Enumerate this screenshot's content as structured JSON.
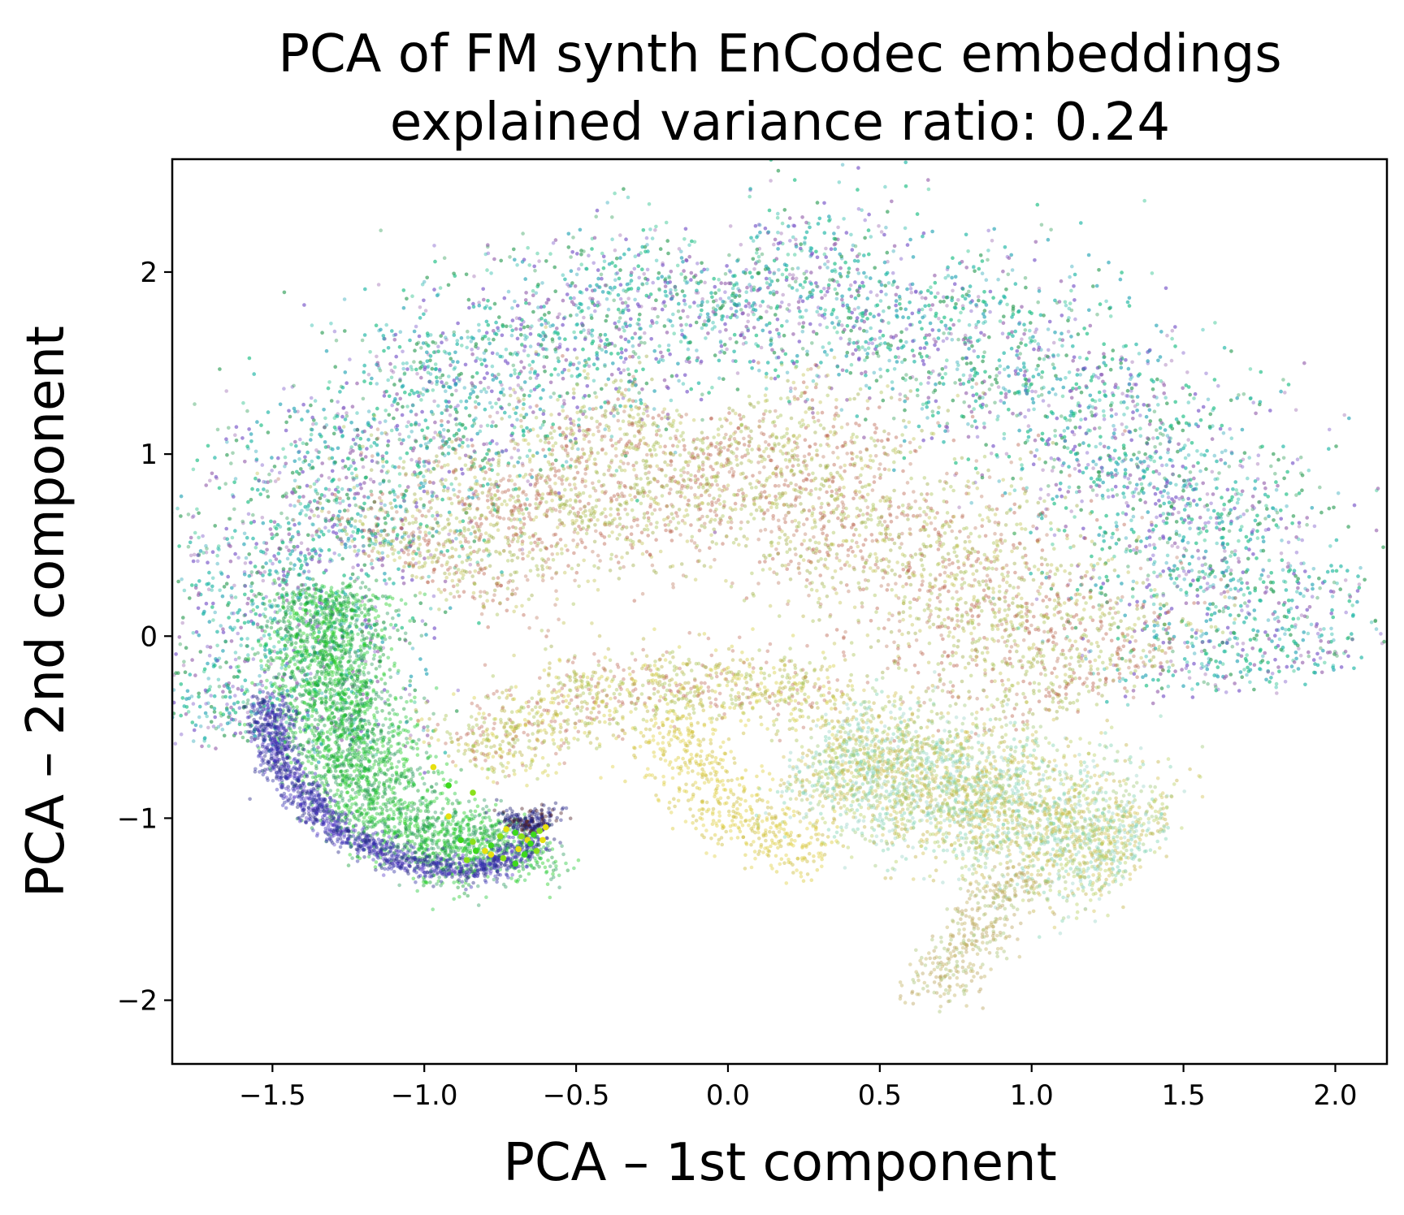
{
  "chart_data": {
    "type": "scatter",
    "title": [
      "PCA of FM synth EnCodec embeddings",
      "explained variance ratio: 0.24"
    ],
    "xlabel": "PCA – 1st component",
    "ylabel": "PCA – 2nd component",
    "xlim": [
      -1.83,
      2.17
    ],
    "ylim": [
      -2.35,
      2.62
    ],
    "xticks": [
      -1.5,
      -1.0,
      -0.5,
      0.0,
      0.5,
      1.0,
      1.5,
      2.0
    ],
    "xtick_labels": [
      "−1.5",
      "−1.0",
      "−0.5",
      "0.0",
      "0.5",
      "1.0",
      "1.5",
      "2.0"
    ],
    "yticks": [
      -2,
      -1,
      0,
      1,
      2
    ],
    "ytick_labels": [
      "−2",
      "−1",
      "0",
      "1",
      "2"
    ],
    "grid": false,
    "legend": "none",
    "regions": [
      {
        "name": "outer-arc",
        "colors": [
          "#1fbf86",
          "#22b8a8",
          "#35a05a",
          "#7a55c8",
          "#2aa6b8",
          "#9a6ab0"
        ],
        "path": [
          [
            -1.55,
            -0.6
          ],
          [
            -1.5,
            0.0
          ],
          [
            -1.38,
            0.65
          ],
          [
            -1.05,
            1.2
          ],
          [
            -0.55,
            1.65
          ],
          [
            0.0,
            1.95
          ],
          [
            0.55,
            1.85
          ],
          [
            1.05,
            1.45
          ],
          [
            1.4,
            0.95
          ],
          [
            1.62,
            0.4
          ],
          [
            1.75,
            -0.25
          ]
        ],
        "width": 0.55,
        "count": 9000
      },
      {
        "name": "left-green-band",
        "colors": [
          "#1ecc1e",
          "#22c83a",
          "#2a9c60",
          "#0f9a30"
        ],
        "path": [
          [
            -1.32,
            0.25
          ],
          [
            -1.3,
            -0.4
          ],
          [
            -1.2,
            -0.85
          ],
          [
            -1.0,
            -1.15
          ],
          [
            -0.8,
            -1.2
          ],
          [
            -0.65,
            -1.1
          ]
        ],
        "width": 0.24,
        "count": 3000
      },
      {
        "name": "left-blue-edge",
        "colors": [
          "#2a2aa0",
          "#3a2fb8",
          "#5a3cc8",
          "#1e1e80"
        ],
        "path": [
          [
            -1.52,
            -0.35
          ],
          [
            -1.48,
            -0.7
          ],
          [
            -1.3,
            -1.05
          ],
          [
            -1.05,
            -1.25
          ],
          [
            -0.82,
            -1.3
          ],
          [
            -0.65,
            -1.15
          ]
        ],
        "width": 0.08,
        "count": 1400
      },
      {
        "name": "center-fill",
        "colors": [
          "#b85a44",
          "#9aaa40",
          "#c0c050",
          "#a8c050",
          "#c0806a"
        ],
        "path": [
          [
            -1.05,
            0.35
          ],
          [
            -0.6,
            0.85
          ],
          [
            -0.1,
            1.05
          ],
          [
            0.45,
            0.7
          ],
          [
            0.85,
            0.2
          ],
          [
            1.25,
            -0.3
          ]
        ],
        "width": 0.55,
        "count": 3800
      },
      {
        "name": "lower-center",
        "colors": [
          "#b8b040",
          "#a8c050",
          "#c07060",
          "#d4cc40"
        ],
        "path": [
          [
            -0.85,
            -0.7
          ],
          [
            -0.55,
            -0.35
          ],
          [
            -0.15,
            -0.25
          ],
          [
            0.35,
            -0.35
          ]
        ],
        "width": 0.25,
        "count": 1100
      },
      {
        "name": "right-lobe",
        "colors": [
          "#7ad2b0",
          "#b8d060",
          "#a0c878",
          "#d2c050",
          "#9ad4c8",
          "#c0b040"
        ],
        "path": [
          [
            0.3,
            -0.6
          ],
          [
            0.7,
            -0.8
          ],
          [
            1.05,
            -1.05
          ],
          [
            1.35,
            -1.2
          ]
        ],
        "width": 0.42,
        "count": 3200
      },
      {
        "name": "yellow-drip",
        "colors": [
          "#e0d040",
          "#d8c830",
          "#c8b830"
        ],
        "path": [
          [
            -0.18,
            -0.45
          ],
          [
            -0.1,
            -0.8
          ],
          [
            0.1,
            -1.1
          ],
          [
            0.3,
            -1.2
          ]
        ],
        "width": 0.2,
        "count": 500
      },
      {
        "name": "right-bottom-tail",
        "colors": [
          "#c0b060",
          "#b8a058",
          "#a8c070"
        ],
        "path": [
          [
            0.95,
            -1.3
          ],
          [
            0.85,
            -1.55
          ],
          [
            0.75,
            -1.8
          ],
          [
            0.7,
            -2.0
          ]
        ],
        "width": 0.14,
        "count": 380
      },
      {
        "name": "cusp-dark",
        "colors": [
          "#1a1a70",
          "#22228a",
          "#4a1a20"
        ],
        "path": [
          [
            -0.72,
            -1.0
          ],
          [
            -0.65,
            -1.05
          ],
          [
            -0.6,
            -0.98
          ]
        ],
        "width": 0.06,
        "count": 220
      }
    ],
    "highlight_points": {
      "colors": [
        "#e6e010",
        "#3cd81e",
        "#8ae01a"
      ],
      "x": [
        -0.97,
        -0.92,
        -0.84,
        -0.92,
        -0.88,
        -0.84,
        -0.8,
        -0.78,
        -0.75,
        -0.73,
        -0.7,
        -0.68,
        -0.66,
        -0.64,
        -0.62,
        -0.6,
        -0.7,
        -0.74,
        -0.78,
        -0.83,
        -0.86,
        -0.69,
        -0.65,
        -0.63,
        -0.61,
        -0.67
      ],
      "y": [
        -0.72,
        -0.82,
        -0.86,
        -0.99,
        -1.12,
        -1.13,
        -1.18,
        -1.15,
        -1.1,
        -1.06,
        -1.08,
        -1.1,
        -1.12,
        -1.09,
        -1.07,
        -1.05,
        -1.25,
        -1.22,
        -1.2,
        -1.18,
        -1.23,
        -1.17,
        -1.14,
        -1.18,
        -1.12,
        -1.2
      ]
    }
  }
}
